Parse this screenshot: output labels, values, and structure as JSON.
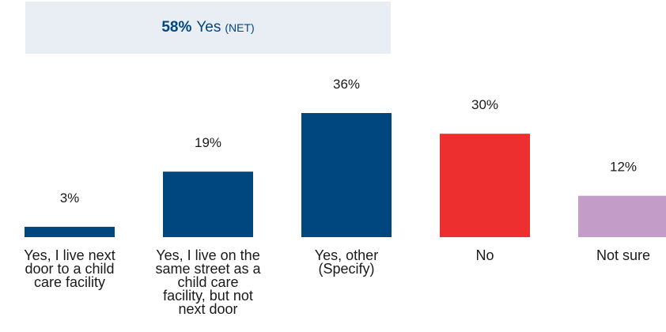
{
  "net_header": {
    "percent": "58%",
    "label": "Yes",
    "qualifier": "(NET)"
  },
  "colors": {
    "navy": "#00467f",
    "red": "#ee2f2f",
    "lavender": "#c39cc8",
    "net_bg": "#e9eef5"
  },
  "chart_data": {
    "type": "bar",
    "categories": [
      "Yes, I live next door to a child care facility",
      "Yes, I live on the same street as a child care facility, but not next door",
      "Yes, other (Specify)",
      "No",
      "Not sure"
    ],
    "category_lines": [
      [
        "Yes, I live next",
        "door to a child",
        "care facility"
      ],
      [
        "Yes, I live on the",
        "same street as a",
        "child care",
        "facility, but not",
        "next door"
      ],
      [
        "Yes, other",
        "(Specify)"
      ],
      [
        "No"
      ],
      [
        "Not sure"
      ]
    ],
    "values": [
      3,
      19,
      36,
      30,
      12
    ],
    "value_labels": [
      "3%",
      "19%",
      "36%",
      "30%",
      "12%"
    ],
    "bar_colors": [
      "#00467f",
      "#00467f",
      "#00467f",
      "#ee2f2f",
      "#c39cc8"
    ],
    "ylim": [
      0,
      36
    ],
    "grid": false,
    "legend": "none"
  }
}
